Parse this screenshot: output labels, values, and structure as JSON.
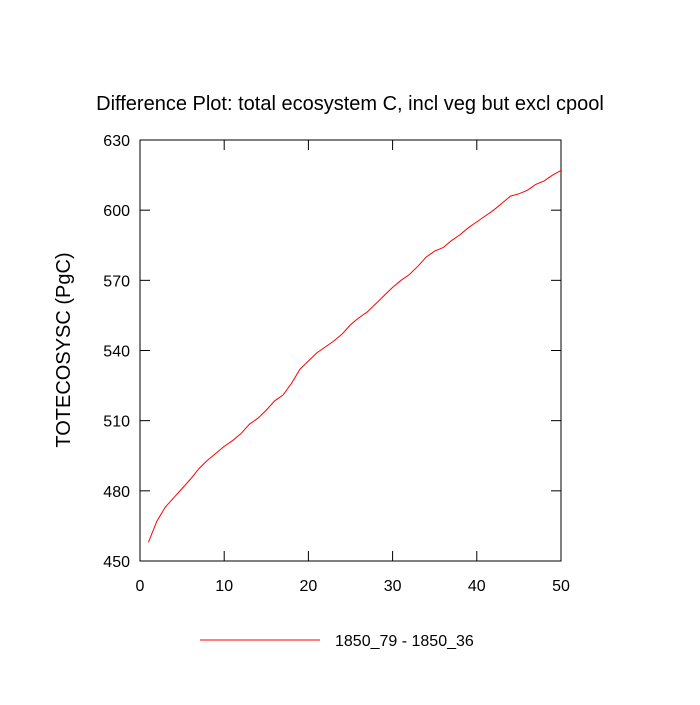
{
  "chart_data": {
    "type": "line",
    "title": "Difference Plot: total ecosystem C, incl veg but excl cpool",
    "ylabel": "TOTECOSYSC  (PgC)",
    "x": [
      1,
      2,
      3,
      4,
      5,
      6,
      7,
      8,
      9,
      10,
      11,
      12,
      13,
      14,
      15,
      16,
      17,
      18,
      19,
      20,
      21,
      22,
      23,
      24,
      25,
      26,
      27,
      28,
      29,
      30,
      31,
      32,
      33,
      34,
      35,
      36,
      37,
      38,
      39,
      40,
      41,
      42,
      43,
      44,
      45,
      46,
      47,
      48,
      49,
      50
    ],
    "series": [
      {
        "name": "1850_79 - 1850_36",
        "color": "#ff0000",
        "values": [
          458,
          467,
          473,
          477,
          481,
          485,
          489.5,
          493,
          496,
          499,
          501.5,
          504.5,
          508.5,
          511,
          514.5,
          518.5,
          521,
          526,
          532,
          535.5,
          539,
          541.5,
          544,
          547,
          551,
          554,
          556.5,
          560,
          563.5,
          567,
          570,
          572.5,
          576,
          580,
          582.5,
          584,
          587,
          589.5,
          592.5,
          595,
          597.5,
          600,
          603,
          606,
          607,
          608.5,
          611,
          612.5,
          615,
          617
        ]
      }
    ],
    "xlim": [
      0,
      50
    ],
    "xticks": [
      0,
      10,
      20,
      30,
      40,
      50
    ],
    "ylim": [
      450,
      630
    ],
    "yticks": [
      450,
      480,
      510,
      540,
      570,
      600,
      630
    ],
    "legend": "bottom"
  }
}
